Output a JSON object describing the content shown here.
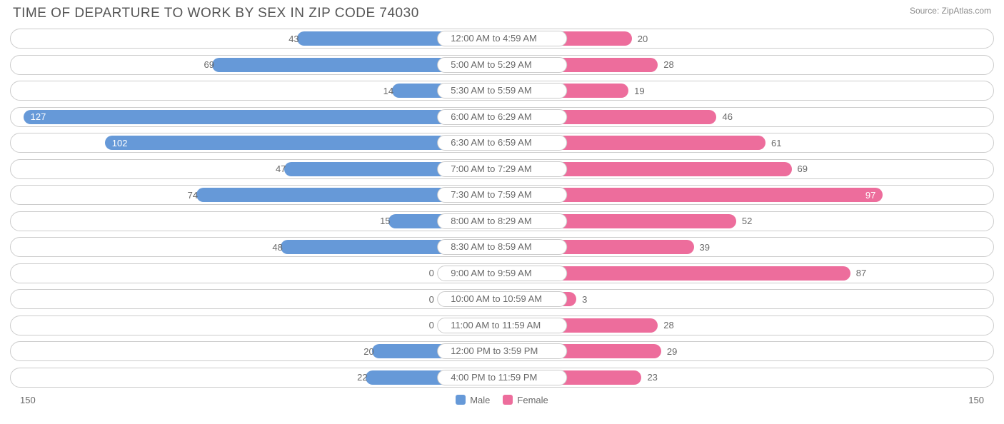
{
  "title": "TIME OF DEPARTURE TO WORK BY SEX IN ZIP CODE 74030",
  "source": "Source: ZipAtlas.com",
  "chart": {
    "type": "diverging-bar",
    "axis_max": 150,
    "axis_left_label": "150",
    "axis_right_label": "150",
    "label_min_width_pct": 13.2,
    "colors": {
      "male": "#6699d8",
      "female": "#ed6d9c",
      "row_border": "#cccccc",
      "background": "#ffffff",
      "text": "#696969",
      "title": "#555555"
    },
    "legend": [
      {
        "label": "Male",
        "color": "#6699d8"
      },
      {
        "label": "Female",
        "color": "#ed6d9c"
      }
    ],
    "rows": [
      {
        "category": "12:00 AM to 4:59 AM",
        "male": 43,
        "female": 20
      },
      {
        "category": "5:00 AM to 5:29 AM",
        "male": 69,
        "female": 28
      },
      {
        "category": "5:30 AM to 5:59 AM",
        "male": 14,
        "female": 19
      },
      {
        "category": "6:00 AM to 6:29 AM",
        "male": 127,
        "female": 46
      },
      {
        "category": "6:30 AM to 6:59 AM",
        "male": 102,
        "female": 61
      },
      {
        "category": "7:00 AM to 7:29 AM",
        "male": 47,
        "female": 69
      },
      {
        "category": "7:30 AM to 7:59 AM",
        "male": 74,
        "female": 97
      },
      {
        "category": "8:00 AM to 8:29 AM",
        "male": 15,
        "female": 52
      },
      {
        "category": "8:30 AM to 8:59 AM",
        "male": 48,
        "female": 39
      },
      {
        "category": "9:00 AM to 9:59 AM",
        "male": 0,
        "female": 87
      },
      {
        "category": "10:00 AM to 10:59 AM",
        "male": 0,
        "female": 3
      },
      {
        "category": "11:00 AM to 11:59 AM",
        "male": 0,
        "female": 28
      },
      {
        "category": "12:00 PM to 3:59 PM",
        "male": 20,
        "female": 29
      },
      {
        "category": "4:00 PM to 11:59 PM",
        "male": 22,
        "female": 23
      }
    ]
  }
}
